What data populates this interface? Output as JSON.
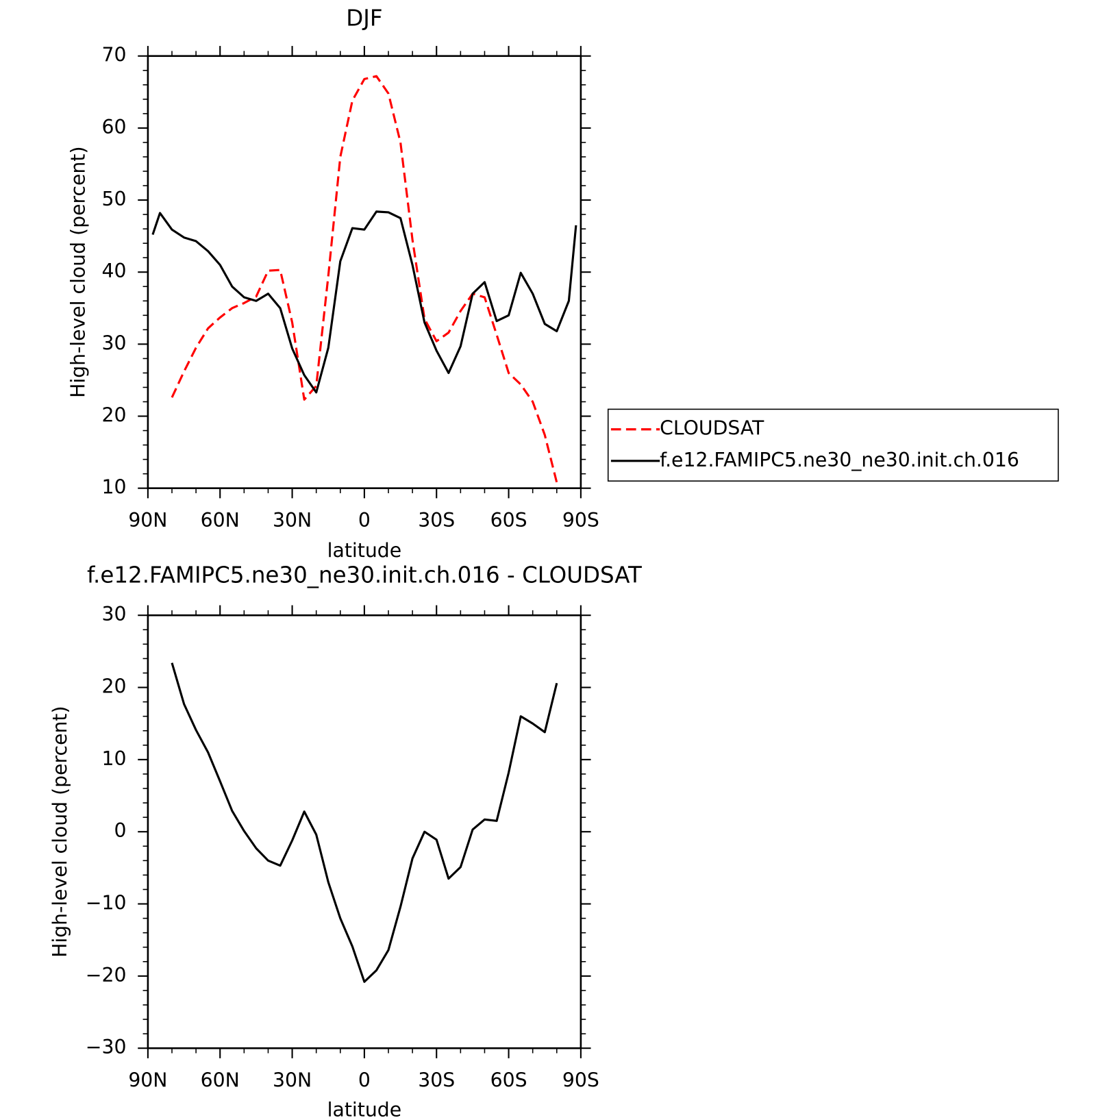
{
  "chart_data": [
    {
      "type": "line",
      "title": "DJF",
      "xlabel": "latitude",
      "ylabel": "High-level cloud (percent)",
      "x": [
        88,
        85,
        80,
        75,
        70,
        65,
        60,
        55,
        50,
        45,
        40,
        35,
        30,
        25,
        20,
        15,
        10,
        5,
        0,
        -5,
        -10,
        -15,
        -20,
        -25,
        -30,
        -35,
        -40,
        -45,
        -50,
        -55,
        -60,
        -65,
        -70,
        -75,
        -80,
        -85,
        -88
      ],
      "series": [
        {
          "name": "CLOUDSAT",
          "color": "#ff0000",
          "dash": true,
          "values": [
            null,
            null,
            22.6,
            26.2,
            29.5,
            32.2,
            33.7,
            35.0,
            35.7,
            36.6,
            40.2,
            40.3,
            33.0,
            22.3,
            24.2,
            39.5,
            56.0,
            63.8,
            66.8,
            67.2,
            64.8,
            58.0,
            44.5,
            33.5,
            30.4,
            31.6,
            34.6,
            37.0,
            36.5,
            31.3,
            26.0,
            24.4,
            22.0,
            17.4,
            10.8,
            null,
            null
          ]
        },
        {
          "name": "f.e12.FAMIPC5.ne30_ne30.init.ch.016",
          "color": "#000000",
          "dash": false,
          "values": [
            45.2,
            48.2,
            45.9,
            44.8,
            44.3,
            42.9,
            41.0,
            38.0,
            36.5,
            36.0,
            37.0,
            35.0,
            29.4,
            25.7,
            23.3,
            29.5,
            41.5,
            46.1,
            45.9,
            48.4,
            48.3,
            47.5,
            41.0,
            33.0,
            29.1,
            26.0,
            29.7,
            37.0,
            38.6,
            33.2,
            34.0,
            39.9,
            37.0,
            32.8,
            31.8,
            36.0,
            46.5
          ]
        }
      ],
      "xlim": [
        90,
        -90
      ],
      "xticks": [
        {
          "value": 90,
          "label": "90N"
        },
        {
          "value": 60,
          "label": "60N"
        },
        {
          "value": 30,
          "label": "30N"
        },
        0,
        {
          "value": -30,
          "label": "30S"
        },
        {
          "value": -60,
          "label": "60S"
        },
        {
          "value": -90,
          "label": "90S"
        }
      ],
      "ylim": [
        10,
        70
      ],
      "yticks": [
        10,
        20,
        30,
        40,
        50,
        60,
        70
      ],
      "legend": "outside-right"
    },
    {
      "type": "line",
      "title": "f.e12.FAMIPC5.ne30_ne30.init.ch.016 - CLOUDSAT",
      "xlabel": "latitude",
      "ylabel": "High-level cloud (percent)",
      "x": [
        80,
        75,
        70,
        65,
        60,
        55,
        50,
        45,
        40,
        35,
        30,
        25,
        20,
        15,
        10,
        5,
        0,
        -5,
        -10,
        -15,
        -20,
        -25,
        -30,
        -35,
        -40,
        -45,
        -50,
        -55,
        -60,
        -65,
        -70,
        -75,
        -80
      ],
      "values": [
        23.4,
        17.7,
        14.1,
        11.0,
        7.0,
        2.9,
        0.1,
        -2.3,
        -4.0,
        -4.7,
        -1.2,
        2.8,
        -0.4,
        -7.0,
        -12.0,
        -15.9,
        -20.8,
        -19.2,
        -16.4,
        -10.4,
        -3.7,
        0.0,
        -1.1,
        -6.5,
        -4.9,
        0.3,
        1.7,
        1.5,
        8.2,
        16.0,
        15.0,
        13.8,
        20.6
      ],
      "color": "#000000",
      "xlim": [
        90,
        -90
      ],
      "xticks": [
        {
          "value": 90,
          "label": "90N"
        },
        {
          "value": 60,
          "label": "60N"
        },
        {
          "value": 30,
          "label": "30N"
        },
        0,
        {
          "value": -30,
          "label": "30S"
        },
        {
          "value": -60,
          "label": "60S"
        },
        {
          "value": -90,
          "label": "90S"
        }
      ],
      "ylim": [
        -30,
        30
      ],
      "yticks": [
        {
          "value": -30,
          "label": "−30"
        },
        {
          "value": -20,
          "label": "−20"
        },
        {
          "value": -10,
          "label": "−10"
        },
        0,
        10,
        20,
        30
      ]
    }
  ]
}
